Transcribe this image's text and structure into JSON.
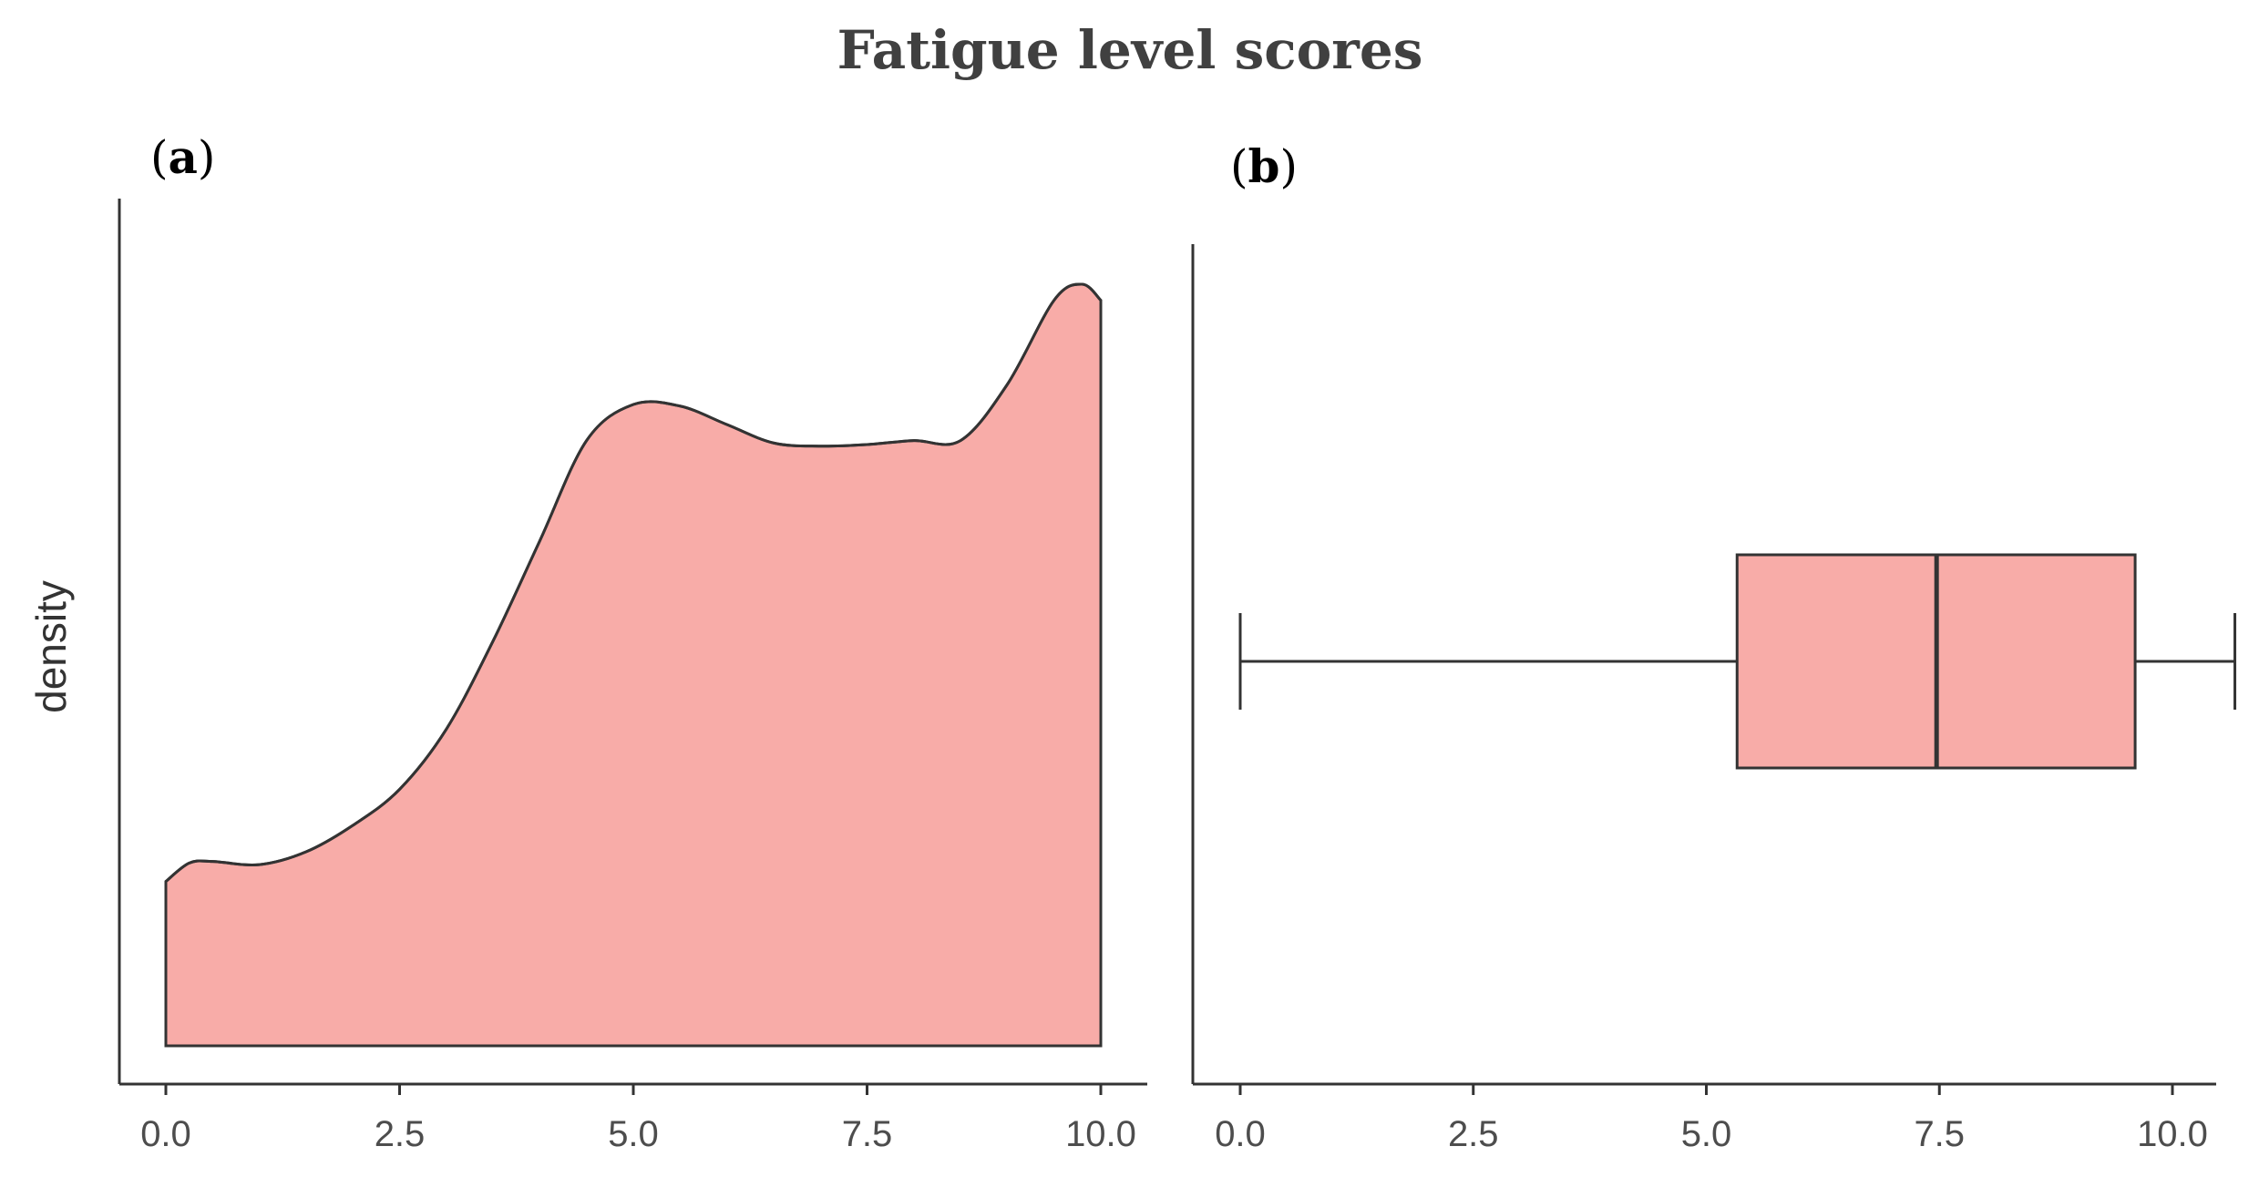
{
  "figure": {
    "title": "Fatigue level scores"
  },
  "colors": {
    "fill": "#f8aca8",
    "line": "#333333"
  },
  "chart_data": [
    {
      "panel_label": "a",
      "type": "area",
      "subtype": "density",
      "xlabel": "",
      "ylabel": "density",
      "xlim": [
        -0.5,
        10.5
      ],
      "xticks": [
        "0.0",
        "2.5",
        "5.0",
        "7.5",
        "10.0"
      ],
      "xtick_values": [
        0,
        2.5,
        5,
        7.5,
        10
      ],
      "y_ticks_shown": false,
      "grid": false,
      "density_curve": {
        "x": [
          0,
          0.25,
          0.5,
          1.0,
          1.5,
          2.0,
          2.5,
          3.0,
          3.5,
          4.0,
          4.5,
          5.0,
          5.5,
          6.0,
          6.5,
          7.0,
          7.5,
          8.0,
          8.5,
          9.0,
          9.5,
          9.8,
          10.0
        ],
        "y": [
          0.205,
          0.228,
          0.23,
          0.226,
          0.242,
          0.275,
          0.32,
          0.395,
          0.505,
          0.63,
          0.755,
          0.8,
          0.798,
          0.775,
          0.752,
          0.748,
          0.75,
          0.755,
          0.755,
          0.825,
          0.93,
          0.95,
          0.93
        ]
      },
      "ylim": [
        0,
        1
      ]
    },
    {
      "panel_label": "b",
      "type": "boxplot",
      "xlabel": "",
      "ylabel": "",
      "xlim": [
        -0.5,
        10.5
      ],
      "xticks": [
        "0.0",
        "2.5",
        "5.0",
        "7.5",
        "10.0"
      ],
      "xtick_values": [
        0,
        2.5,
        5,
        7.5,
        10
      ],
      "y_ticks_shown": false,
      "grid": false,
      "box": {
        "min": 0,
        "q1": 5.33,
        "median": 7.47,
        "q3": 9.6,
        "max": 10.67
      }
    }
  ]
}
